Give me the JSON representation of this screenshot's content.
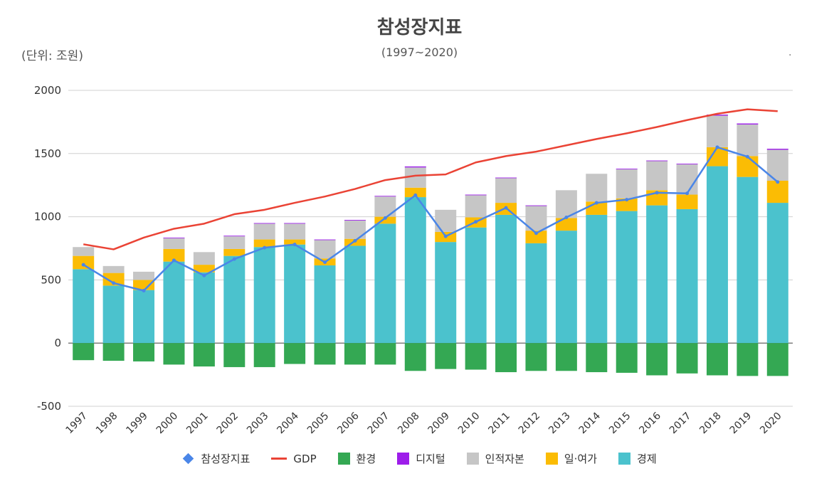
{
  "header": {
    "title": "참성장지표",
    "subtitle": "(1997~2020)",
    "unit": "(단위: 조원)",
    "corner_mark": "."
  },
  "chart_data": {
    "type": "bar",
    "stacked": true,
    "title": "참성장지표",
    "subtitle": "(1997~2020)",
    "categories": [
      "1997",
      "1998",
      "1999",
      "2000",
      "2001",
      "2002",
      "2003",
      "2004",
      "2005",
      "2006",
      "2007",
      "2008",
      "2009",
      "2010",
      "2011",
      "2012",
      "2013",
      "2014",
      "2015",
      "2016",
      "2017",
      "2018",
      "2019",
      "2020"
    ],
    "ylim": [
      -500,
      2000
    ],
    "yticks": [
      -500,
      0,
      500,
      1000,
      1500,
      2000
    ],
    "grid": true,
    "legend_position": "bottom",
    "series": [
      {
        "name": "경제",
        "kind": "bar",
        "color": "#4bc2cd",
        "values": [
          585,
          455,
          420,
          645,
          560,
          690,
          760,
          780,
          615,
          770,
          945,
          1155,
          800,
          915,
          1015,
          790,
          890,
          1015,
          1045,
          1090,
          1060,
          1400,
          1315,
          1110
        ]
      },
      {
        "name": "일·여가",
        "kind": "bar",
        "color": "#fbbc04",
        "values": [
          105,
          100,
          80,
          100,
          60,
          55,
          60,
          40,
          55,
          55,
          55,
          75,
          80,
          80,
          95,
          100,
          100,
          105,
          100,
          120,
          115,
          150,
          165,
          175
        ]
      },
      {
        "name": "인적자본",
        "kind": "bar",
        "color": "#c6c6c6",
        "values": [
          70,
          55,
          65,
          85,
          100,
          100,
          125,
          125,
          145,
          145,
          160,
          160,
          175,
          175,
          195,
          195,
          220,
          220,
          230,
          230,
          240,
          250,
          250,
          245
        ]
      },
      {
        "name": "디지털",
        "kind": "bar",
        "color": "#9d1dea",
        "values": [
          0,
          0,
          0,
          5,
          0,
          5,
          5,
          5,
          5,
          5,
          5,
          8,
          0,
          5,
          5,
          5,
          0,
          0,
          5,
          5,
          5,
          8,
          8,
          8
        ]
      },
      {
        "name": "환경",
        "kind": "bar",
        "color": "#34a853",
        "values": [
          -135,
          -140,
          -145,
          -170,
          -185,
          -190,
          -190,
          -165,
          -170,
          -170,
          -170,
          -220,
          -205,
          -210,
          -230,
          -220,
          -220,
          -230,
          -235,
          -255,
          -240,
          -255,
          -260,
          -260
        ]
      },
      {
        "name": "GDP",
        "kind": "line",
        "color": "#ea4335",
        "values": [
          782,
          742,
          835,
          905,
          945,
          1020,
          1055,
          1110,
          1160,
          1220,
          1290,
          1325,
          1335,
          1430,
          1480,
          1515,
          1565,
          1615,
          1660,
          1710,
          1765,
          1815,
          1850,
          1835
        ]
      },
      {
        "name": "참성장지표",
        "kind": "line-marker",
        "color": "#4a86e8",
        "values": [
          620,
          475,
          415,
          655,
          535,
          665,
          755,
          780,
          640,
          810,
          990,
          1170,
          845,
          960,
          1070,
          870,
          995,
          1110,
          1135,
          1190,
          1185,
          1550,
          1475,
          1275
        ]
      }
    ],
    "legend_order": [
      "참성장지표",
      "GDP",
      "환경",
      "디지털",
      "인적자본",
      "일·여가",
      "경제"
    ]
  },
  "legend": {
    "items": [
      {
        "label": "참성장지표",
        "shape": "diamond",
        "color": "#4a86e8"
      },
      {
        "label": "GDP",
        "shape": "line",
        "color": "#ea4335"
      },
      {
        "label": "환경",
        "shape": "box",
        "color": "#34a853"
      },
      {
        "label": "디지털",
        "shape": "box",
        "color": "#9d1dea"
      },
      {
        "label": "인적자본",
        "shape": "box",
        "color": "#c6c6c6"
      },
      {
        "label": "일·여가",
        "shape": "box",
        "color": "#fbbc04"
      },
      {
        "label": "경제",
        "shape": "box",
        "color": "#4bc2cd"
      }
    ]
  }
}
